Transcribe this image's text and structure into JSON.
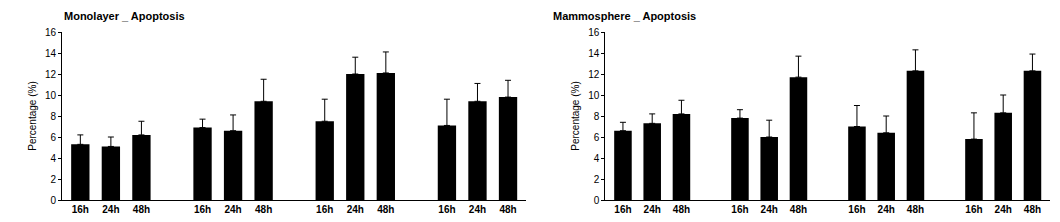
{
  "chart_data": [
    {
      "type": "bar",
      "title": "Monolayer _ Apoptosis",
      "y_label": "Percentage (%)",
      "categories": [
        "16h",
        "24h",
        "48h",
        null,
        "16h",
        "24h",
        "48h",
        null,
        "16h",
        "24h",
        "48h",
        null,
        "16h",
        "24h",
        "48h"
      ],
      "values": [
        5.3,
        5.1,
        6.2,
        null,
        6.9,
        6.6,
        9.4,
        null,
        7.5,
        12.0,
        12.1,
        null,
        7.1,
        9.4,
        9.8
      ],
      "errors": [
        0.9,
        0.9,
        1.3,
        null,
        0.8,
        1.5,
        2.1,
        null,
        2.1,
        1.6,
        2.0,
        null,
        2.5,
        1.7,
        1.6
      ],
      "color": "#000000",
      "ylim": [
        0,
        16
      ],
      "yticks": [
        0,
        2,
        4,
        6,
        8,
        10,
        12,
        14,
        16
      ],
      "grid": false
    },
    {
      "type": "bar",
      "title": "Mammosphere _ Apoptosis",
      "y_label": "Percentage (%)",
      "categories": [
        "16h",
        "24h",
        "48h",
        null,
        "16h",
        "24h",
        "48h",
        null,
        "16h",
        "24h",
        "48h",
        null,
        "16h",
        "24h",
        "48h"
      ],
      "values": [
        6.6,
        7.3,
        8.2,
        null,
        7.8,
        6.0,
        11.7,
        null,
        7.0,
        6.4,
        12.3,
        null,
        5.8,
        8.3,
        12.3
      ],
      "errors": [
        0.8,
        0.9,
        1.3,
        null,
        0.8,
        1.6,
        2.0,
        null,
        2.0,
        1.6,
        2.0,
        null,
        2.5,
        1.7,
        1.6
      ],
      "color": "#000000",
      "ylim": [
        0,
        16
      ],
      "yticks": [
        0,
        2,
        4,
        6,
        8,
        10,
        12,
        14,
        16
      ],
      "grid": false
    }
  ]
}
